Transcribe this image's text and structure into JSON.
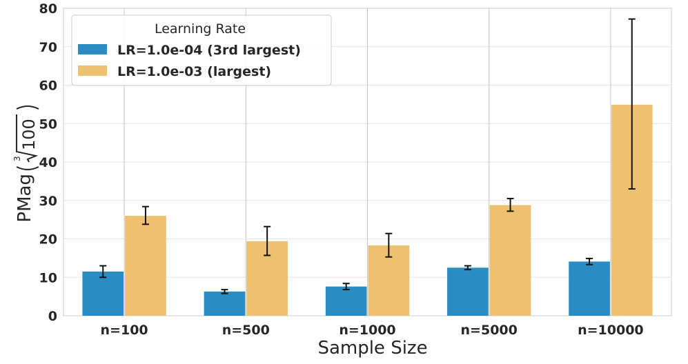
{
  "chart_data": {
    "type": "bar",
    "title": "",
    "xlabel": "Sample Size",
    "ylabel": "PMag",
    "ylabel_superscript": "3",
    "ylabel_radicand": "100",
    "ylim": [
      0,
      80
    ],
    "yticks": [
      "0",
      "10",
      "20",
      "30",
      "40",
      "50",
      "60",
      "70",
      "80"
    ],
    "categories": [
      "n=100",
      "n=500",
      "n=1000",
      "n=5000",
      "n=10000"
    ],
    "legend_title": "Learning Rate",
    "legend_position": "top-left",
    "series": [
      {
        "name": "LR=1.0e-04 (3rd largest)",
        "color": "#2b8cc4",
        "values": [
          11.5,
          6.3,
          7.6,
          12.5,
          14.1
        ],
        "err_low": [
          10.0,
          5.8,
          6.8,
          12.0,
          13.3
        ],
        "err_high": [
          13.0,
          6.8,
          8.4,
          13.0,
          14.9
        ]
      },
      {
        "name": "LR=1.0e-03 (largest)",
        "color": "#edc170",
        "values": [
          26.0,
          19.4,
          18.3,
          28.8,
          54.9
        ],
        "err_low": [
          23.8,
          15.7,
          15.3,
          27.2,
          33.0
        ],
        "err_high": [
          28.4,
          23.2,
          21.4,
          30.5,
          77.2
        ]
      }
    ],
    "grid": true
  }
}
